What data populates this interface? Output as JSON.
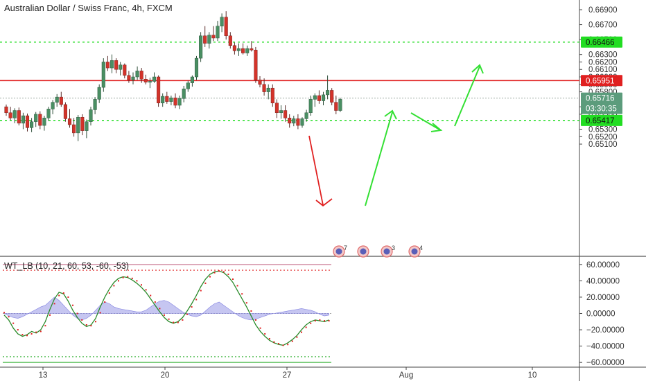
{
  "chart_data": [
    {
      "type": "candlestick",
      "title": "Australian Dollar / Swiss Franc, 4h, FXCM",
      "y_ticks": [
        "0.66900",
        "0.66700",
        "0.66500",
        "0.66300",
        "0.66200",
        "0.66100",
        "0.66000",
        "0.65900",
        "0.65800",
        "0.65600",
        "0.65500",
        "0.65300",
        "0.65200",
        "0.65100"
      ],
      "x_ticks": [
        "13",
        "20",
        "27",
        "Aug",
        "10"
      ],
      "ylim": [
        0.6505,
        0.6695
      ],
      "candles": [
        [
          0.656,
          0.6563,
          0.6548,
          0.6552
        ],
        [
          0.6552,
          0.656,
          0.6542,
          0.6545
        ],
        [
          0.6545,
          0.6558,
          0.6538,
          0.6555
        ],
        [
          0.6555,
          0.6559,
          0.6535,
          0.6538
        ],
        [
          0.6538,
          0.6552,
          0.653,
          0.6548
        ],
        [
          0.6548,
          0.6551,
          0.6527,
          0.6532
        ],
        [
          0.6532,
          0.6545,
          0.6526,
          0.654
        ],
        [
          0.654,
          0.6553,
          0.6533,
          0.655
        ],
        [
          0.655,
          0.6554,
          0.653,
          0.6535
        ],
        [
          0.6535,
          0.6548,
          0.6528,
          0.6545
        ],
        [
          0.6545,
          0.656,
          0.6541,
          0.6557
        ],
        [
          0.6557,
          0.6569,
          0.655,
          0.6566
        ],
        [
          0.6566,
          0.6577,
          0.656,
          0.6573
        ],
        [
          0.6573,
          0.658,
          0.656,
          0.6563
        ],
        [
          0.6563,
          0.6566,
          0.654,
          0.6544
        ],
        [
          0.6544,
          0.6557,
          0.6532,
          0.6536
        ],
        [
          0.6536,
          0.6545,
          0.652,
          0.6525
        ],
        [
          0.6525,
          0.6549,
          0.6514,
          0.6546
        ],
        [
          0.6546,
          0.655,
          0.6522,
          0.6528
        ],
        [
          0.6528,
          0.6543,
          0.6518,
          0.654
        ],
        [
          0.654,
          0.656,
          0.6535,
          0.6556
        ],
        [
          0.6556,
          0.6573,
          0.655,
          0.657
        ],
        [
          0.657,
          0.659,
          0.6565,
          0.6586
        ],
        [
          0.6586,
          0.6625,
          0.658,
          0.662
        ],
        [
          0.662,
          0.6628,
          0.6608,
          0.6612
        ],
        [
          0.6612,
          0.663,
          0.6605,
          0.6622
        ],
        [
          0.6622,
          0.6625,
          0.6605,
          0.661
        ],
        [
          0.661,
          0.662,
          0.6602,
          0.6616
        ],
        [
          0.6616,
          0.6618,
          0.6598,
          0.6602
        ],
        [
          0.6602,
          0.6608,
          0.6592,
          0.6596
        ],
        [
          0.6596,
          0.6606,
          0.659,
          0.66
        ],
        [
          0.66,
          0.6614,
          0.6596,
          0.6608
        ],
        [
          0.6608,
          0.6612,
          0.6592,
          0.6597
        ],
        [
          0.6597,
          0.6603,
          0.659,
          0.6593
        ],
        [
          0.6593,
          0.6599,
          0.6585,
          0.6594
        ],
        [
          0.6594,
          0.6606,
          0.6592,
          0.66
        ],
        [
          0.66,
          0.6602,
          0.656,
          0.6565
        ],
        [
          0.6565,
          0.6578,
          0.656,
          0.6574
        ],
        [
          0.6574,
          0.658,
          0.6564,
          0.6567
        ],
        [
          0.6567,
          0.6575,
          0.6562,
          0.6572
        ],
        [
          0.6572,
          0.6578,
          0.6558,
          0.6562
        ],
        [
          0.6562,
          0.6575,
          0.6557,
          0.6571
        ],
        [
          0.6571,
          0.6588,
          0.6566,
          0.6584
        ],
        [
          0.6584,
          0.6595,
          0.658,
          0.6592
        ],
        [
          0.6592,
          0.6602,
          0.6587,
          0.66
        ],
        [
          0.66,
          0.6628,
          0.6596,
          0.6625
        ],
        [
          0.6625,
          0.666,
          0.662,
          0.6655
        ],
        [
          0.6655,
          0.6668,
          0.664,
          0.6645
        ],
        [
          0.6645,
          0.666,
          0.6638,
          0.6656
        ],
        [
          0.6656,
          0.6668,
          0.6648,
          0.6652
        ],
        [
          0.6652,
          0.6675,
          0.6648,
          0.6668
        ],
        [
          0.6668,
          0.6685,
          0.666,
          0.668
        ],
        [
          0.668,
          0.6688,
          0.665,
          0.6655
        ],
        [
          0.6655,
          0.666,
          0.6638,
          0.6642
        ],
        [
          0.6642,
          0.6646,
          0.663,
          0.6635
        ],
        [
          0.6635,
          0.6645,
          0.6628,
          0.6638
        ],
        [
          0.6638,
          0.6645,
          0.663,
          0.6632
        ],
        [
          0.6632,
          0.6642,
          0.6628,
          0.6638
        ],
        [
          0.6638,
          0.6648,
          0.6634,
          0.6636
        ],
        [
          0.6636,
          0.664,
          0.6592,
          0.6596
        ],
        [
          0.6596,
          0.6601,
          0.6586,
          0.659
        ],
        [
          0.659,
          0.6598,
          0.6575,
          0.658
        ],
        [
          0.658,
          0.659,
          0.657,
          0.6585
        ],
        [
          0.6585,
          0.659,
          0.656,
          0.6565
        ],
        [
          0.6565,
          0.657,
          0.6545,
          0.6552
        ],
        [
          0.6552,
          0.6562,
          0.6544,
          0.6555
        ],
        [
          0.6555,
          0.6562,
          0.654,
          0.6545
        ],
        [
          0.6545,
          0.655,
          0.6532,
          0.6538
        ],
        [
          0.6538,
          0.6548,
          0.6534,
          0.6544
        ],
        [
          0.6544,
          0.655,
          0.653,
          0.6535
        ],
        [
          0.6535,
          0.6546,
          0.6532,
          0.6544
        ],
        [
          0.6544,
          0.6556,
          0.654,
          0.6552
        ],
        [
          0.6552,
          0.6575,
          0.6548,
          0.657
        ],
        [
          0.657,
          0.6578,
          0.656,
          0.6575
        ],
        [
          0.6575,
          0.6582,
          0.6564,
          0.6568
        ],
        [
          0.6568,
          0.658,
          0.6562,
          0.6576
        ],
        [
          0.6576,
          0.6602,
          0.657,
          0.6582
        ],
        [
          0.6582,
          0.6585,
          0.6562,
          0.6566
        ],
        [
          0.6566,
          0.6575,
          0.655,
          0.6555
        ],
        [
          0.6555,
          0.6572,
          0.6553,
          0.657
        ]
      ],
      "levels": [
        {
          "label": "0.66466",
          "value": 0.66466,
          "kind": "support-resistance",
          "color": "#22dd22"
        },
        {
          "label": "0.65951",
          "value": 0.65951,
          "kind": "resistance",
          "color": "#e02020"
        },
        {
          "label": "0.65716",
          "value": 0.65716,
          "kind": "last-price",
          "color": "#5c9c7c"
        },
        {
          "label": "0.65417",
          "value": 0.65417,
          "kind": "support-resistance",
          "color": "#22dd22"
        }
      ],
      "countdown": "03:30:35",
      "event_badges": [
        "7",
        "",
        "3",
        "4"
      ],
      "colors": {
        "up": "#4a8f63",
        "down": "#d4332a",
        "up_wick": "#2f4f3a",
        "down_wick": "#5a2a28",
        "projection": "#33e033",
        "drop": "#e02020"
      }
    },
    {
      "type": "line",
      "title": "WT_LB (10, 21, 60, 53, -60, -53)",
      "y_ticks": [
        "60.00000",
        "40.00000",
        "20.00000",
        "0.00000",
        "−20.00000",
        "−40.00000",
        "−60.00000"
      ],
      "ylim": [
        -62,
        62
      ],
      "overbought_levels": [
        60,
        53
      ],
      "oversold_levels": [
        -53,
        -60
      ],
      "series": [
        {
          "values": [
            -2,
            -8,
            -18,
            -25,
            -28,
            -26,
            -22,
            -24,
            -20,
            -10,
            5,
            18,
            26,
            24,
            15,
            4,
            -5,
            -12,
            -16,
            -14,
            -6,
            8,
            20,
            30,
            38,
            43,
            45,
            44,
            41,
            37,
            32,
            26,
            18,
            10,
            2,
            -5,
            -10,
            -12,
            -10,
            -5,
            3,
            12,
            22,
            33,
            42,
            48,
            51,
            52,
            50,
            45,
            38,
            28,
            18,
            8,
            -3,
            -14,
            -22,
            -28,
            -33,
            -36,
            -38,
            -39,
            -36,
            -32,
            -27,
            -20,
            -14,
            -10,
            -8,
            -9,
            -10,
            -8
          ]
        },
        {
          "values": [
            1,
            -4,
            -12,
            -20,
            -26,
            -27,
            -25,
            -23,
            -22,
            -15,
            -2,
            12,
            22,
            25,
            20,
            10,
            0,
            -8,
            -14,
            -15,
            -10,
            1,
            14,
            25,
            34,
            40,
            44,
            45,
            43,
            40,
            35,
            29,
            22,
            14,
            6,
            -2,
            -7,
            -11,
            -11,
            -8,
            -1,
            8,
            17,
            28,
            37,
            45,
            50,
            52,
            51,
            48,
            42,
            34,
            24,
            13,
            3,
            -8,
            -18,
            -25,
            -31,
            -35,
            -37,
            -39,
            -38,
            -34,
            -29,
            -23,
            -17,
            -12,
            -9,
            -8,
            -9,
            -9
          ]
        },
        {
          "values": [
            0,
            -3,
            -5,
            -6,
            -4,
            -1,
            2,
            5,
            8,
            10,
            15,
            20,
            16,
            10,
            4,
            -2,
            -6,
            -8,
            -6,
            -2,
            4,
            10,
            14,
            12,
            8,
            6,
            5,
            4,
            3,
            2,
            2,
            4,
            8,
            12,
            15,
            16,
            14,
            10,
            6,
            2,
            -1,
            -3,
            -4,
            -2,
            3,
            8,
            12,
            14,
            10,
            6,
            2,
            -2,
            -5,
            -7,
            -8,
            -7,
            -5,
            -3,
            -1,
            0,
            1,
            2,
            3,
            4,
            5,
            6,
            5,
            4,
            2,
            -1,
            -3,
            -2
          ]
        }
      ]
    }
  ]
}
